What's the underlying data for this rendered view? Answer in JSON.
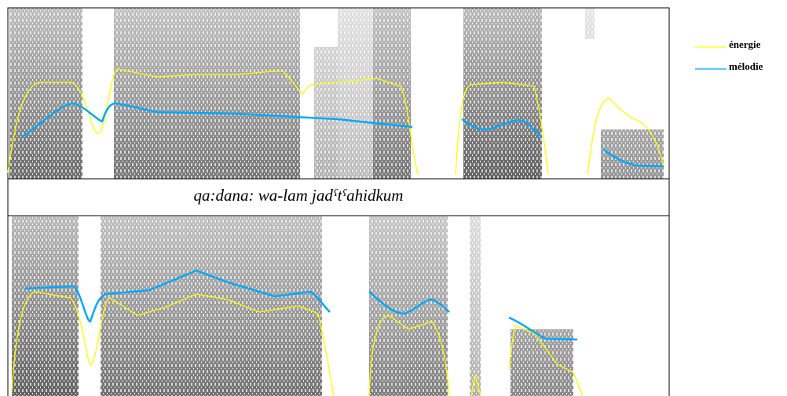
{
  "transcription": "qa:dana: wa-lam jadˤtˤahidkum",
  "legend": {
    "items": [
      {
        "label": "énergie"
      },
      {
        "label": "mélodie"
      }
    ]
  }
}
